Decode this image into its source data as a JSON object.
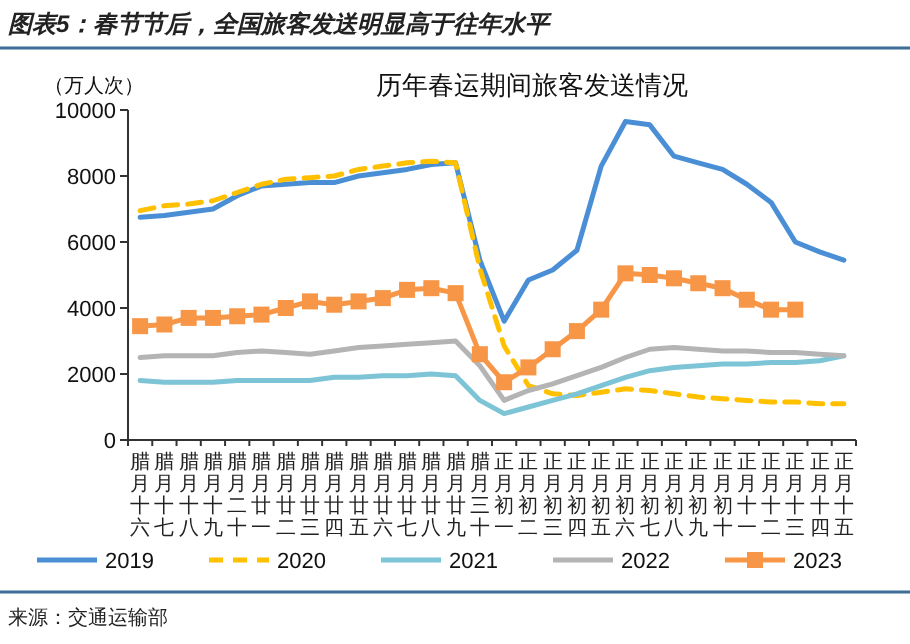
{
  "chart_data": {
    "type": "line",
    "title": "图表5：春节节后，全国旅客发送明显高于往年水平",
    "subtitle": "历年春运期间旅客发送情况",
    "ylabel": "（万人次）",
    "annotations": [
      "来源：交通运输部"
    ],
    "categories": [
      "腊月十六",
      "腊月十七",
      "腊月十八",
      "腊月十九",
      "腊月二十",
      "腊月廿一",
      "腊月廿二",
      "腊月廿三",
      "腊月廿四",
      "腊月廿五",
      "腊月廿六",
      "腊月廿七",
      "腊月廿八",
      "腊月廿九",
      "腊月三十",
      "正月初一",
      "正月初二",
      "正月初三",
      "正月初四",
      "正月初五",
      "正月初六",
      "正月初七",
      "正月初八",
      "正月初九",
      "正月初十",
      "正月十一",
      "正月十二",
      "正月十三",
      "正月十四",
      "正月十五"
    ],
    "ylim": [
      0,
      10000
    ],
    "yticks": [
      0,
      2000,
      4000,
      6000,
      8000,
      10000
    ],
    "grid": false,
    "legend": "bottom",
    "series": [
      {
        "name": "2019",
        "color": "#4a8fd6",
        "line_style": "solid",
        "values": [
          6750,
          6800,
          6900,
          7000,
          7400,
          7700,
          7750,
          7800,
          7800,
          8000,
          8100,
          8200,
          8350,
          8400,
          5450,
          3600,
          4850,
          5150,
          5750,
          8300,
          9650,
          9550,
          8600,
          8400,
          8200,
          7750,
          7200,
          6000,
          5700,
          5450
        ]
      },
      {
        "name": "2020",
        "color": "#ffc000",
        "line_style": "dashed",
        "values": [
          6950,
          7100,
          7150,
          7250,
          7500,
          7750,
          7900,
          7950,
          8000,
          8200,
          8300,
          8400,
          8450,
          8400,
          5200,
          2850,
          1650,
          1400,
          1350,
          1450,
          1550,
          1500,
          1400,
          1300,
          1250,
          1200,
          1150,
          1150,
          1100,
          1100
        ]
      },
      {
        "name": "2021",
        "color": "#7cc4d6",
        "line_style": "solid",
        "values": [
          1800,
          1750,
          1750,
          1750,
          1800,
          1800,
          1800,
          1800,
          1900,
          1900,
          1950,
          1950,
          2000,
          1950,
          1200,
          800,
          1000,
          1200,
          1400,
          1650,
          1900,
          2100,
          2200,
          2250,
          2300,
          2300,
          2350,
          2350,
          2400,
          2550
        ]
      },
      {
        "name": "2022",
        "color": "#b4b4b4",
        "line_style": "solid",
        "values": [
          2500,
          2550,
          2550,
          2550,
          2650,
          2700,
          2650,
          2600,
          2700,
          2800,
          2850,
          2900,
          2950,
          3000,
          2250,
          1200,
          1500,
          1700,
          1950,
          2200,
          2500,
          2750,
          2800,
          2750,
          2700,
          2700,
          2650,
          2650,
          2600,
          2550
        ]
      },
      {
        "name": "2023",
        "color": "#f79646",
        "line_style": "solid",
        "marker": "square",
        "values": [
          3450,
          3500,
          3700,
          3700,
          3750,
          3800,
          4000,
          4200,
          4100,
          4200,
          4300,
          4550,
          4600,
          4450,
          2600,
          1750,
          2200,
          2750,
          3300,
          3950,
          5050,
          5000,
          4900,
          4750,
          4600,
          4250,
          3950,
          3950,
          null,
          null
        ]
      }
    ]
  }
}
